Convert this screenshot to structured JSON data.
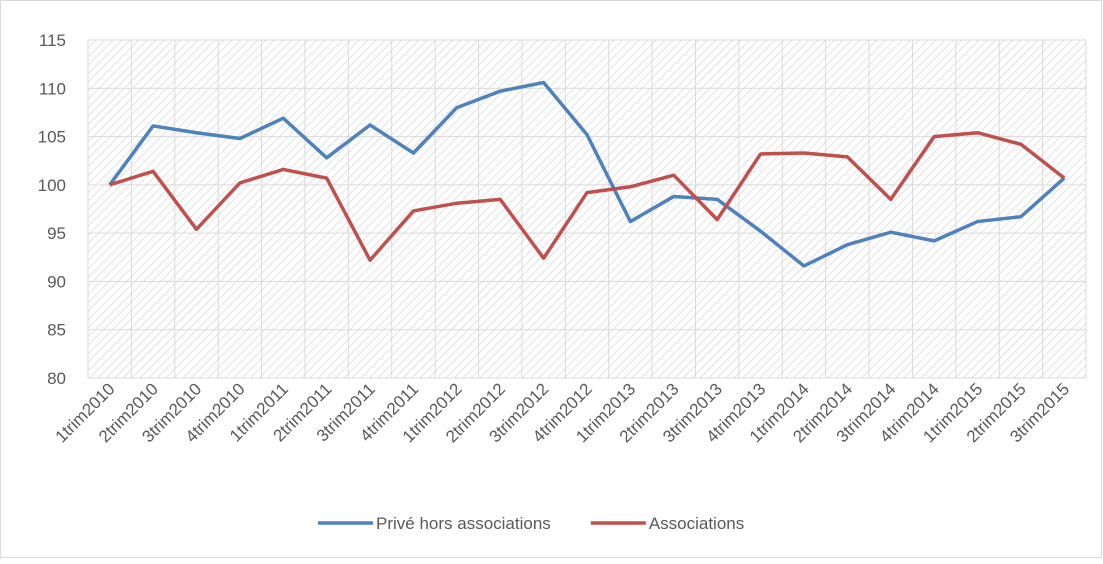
{
  "chart_data": {
    "type": "line",
    "categories": [
      "1trim2010",
      "2trim2010",
      "3trim2010",
      "4trim2010",
      "1trim2011",
      "2trim2011",
      "3trim2011",
      "4trim2011",
      "1trim2012",
      "2trim2012",
      "3trim2012",
      "4trim2012",
      "1trim2013",
      "2trim2013",
      "3trim2013",
      "4trim2013",
      "1trim2014",
      "2trim2014",
      "3trim2014",
      "4trim2014",
      "1trim2015",
      "2trim2015",
      "3trim2015"
    ],
    "series": [
      {
        "name": "Privé hors associations",
        "color": "#4f81bd",
        "values": [
          100,
          106.1,
          105.4,
          104.8,
          106.9,
          102.8,
          106.2,
          103.3,
          108,
          109.7,
          110.6,
          105.2,
          96.2,
          98.8,
          98.5,
          95.2,
          91.6,
          93.8,
          95.1,
          94.2,
          96.2,
          96.7,
          100.7
        ]
      },
      {
        "name": "Associations",
        "color": "#c0504d",
        "values": [
          100,
          101.4,
          95.4,
          100.2,
          101.6,
          100.7,
          92.2,
          97.3,
          98.1,
          98.5,
          92.4,
          99.2,
          99.8,
          101,
          96.4,
          103.2,
          103.3,
          102.9,
          98.5,
          105,
          105.4,
          104.2,
          100.7
        ]
      }
    ],
    "ylim": [
      80,
      115
    ],
    "yticks": [
      80,
      85,
      90,
      95,
      100,
      105,
      110,
      115
    ],
    "grid": true,
    "legend": "bottom"
  }
}
